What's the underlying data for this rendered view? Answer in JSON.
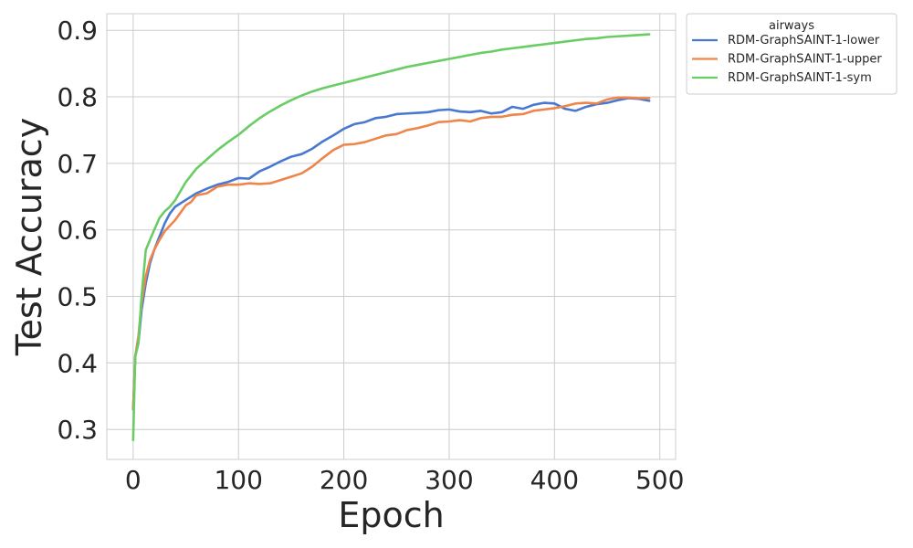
{
  "chart_data": {
    "type": "line",
    "title": "",
    "xlabel": "Epoch",
    "ylabel": "Test Accuracy",
    "xlim": [
      -25,
      515
    ],
    "ylim": [
      0.255,
      0.925
    ],
    "xticks": [
      0,
      100,
      200,
      300,
      400,
      500
    ],
    "xtick_labels": [
      "0",
      "100",
      "200",
      "300",
      "400",
      "500"
    ],
    "yticks": [
      0.3,
      0.4,
      0.5,
      0.6,
      0.7,
      0.8,
      0.9
    ],
    "ytick_labels": [
      "0.3",
      "0.4",
      "0.5",
      "0.6",
      "0.7",
      "0.8",
      "0.9"
    ],
    "grid": true,
    "legend": {
      "title": "airways",
      "placement": "outside-top-right"
    },
    "series": [
      {
        "name": "RDM-GraphSAINT-1-lower",
        "color": "#4878d0",
        "points": [
          [
            0,
            0.33
          ],
          [
            2,
            0.41
          ],
          [
            5,
            0.43
          ],
          [
            8,
            0.48
          ],
          [
            12,
            0.52
          ],
          [
            16,
            0.55
          ],
          [
            20,
            0.57
          ],
          [
            25,
            0.59
          ],
          [
            30,
            0.61
          ],
          [
            35,
            0.625
          ],
          [
            40,
            0.635
          ],
          [
            50,
            0.645
          ],
          [
            60,
            0.655
          ],
          [
            70,
            0.662
          ],
          [
            80,
            0.668
          ],
          [
            90,
            0.672
          ],
          [
            100,
            0.678
          ],
          [
            110,
            0.677
          ],
          [
            120,
            0.688
          ],
          [
            130,
            0.695
          ],
          [
            140,
            0.703
          ],
          [
            150,
            0.71
          ],
          [
            160,
            0.714
          ],
          [
            170,
            0.722
          ],
          [
            180,
            0.733
          ],
          [
            190,
            0.742
          ],
          [
            200,
            0.752
          ],
          [
            210,
            0.759
          ],
          [
            220,
            0.762
          ],
          [
            230,
            0.768
          ],
          [
            240,
            0.77
          ],
          [
            250,
            0.774
          ],
          [
            260,
            0.775
          ],
          [
            270,
            0.776
          ],
          [
            280,
            0.777
          ],
          [
            290,
            0.78
          ],
          [
            300,
            0.781
          ],
          [
            310,
            0.778
          ],
          [
            320,
            0.777
          ],
          [
            330,
            0.779
          ],
          [
            340,
            0.775
          ],
          [
            350,
            0.777
          ],
          [
            360,
            0.785
          ],
          [
            370,
            0.782
          ],
          [
            380,
            0.788
          ],
          [
            390,
            0.791
          ],
          [
            400,
            0.79
          ],
          [
            410,
            0.782
          ],
          [
            420,
            0.779
          ],
          [
            430,
            0.785
          ],
          [
            440,
            0.789
          ],
          [
            450,
            0.791
          ],
          [
            460,
            0.795
          ],
          [
            470,
            0.798
          ],
          [
            480,
            0.797
          ],
          [
            490,
            0.794
          ]
        ]
      },
      {
        "name": "RDM-GraphSAINT-1-upper",
        "color": "#ee854a",
        "points": [
          [
            0,
            0.33
          ],
          [
            2,
            0.41
          ],
          [
            5,
            0.44
          ],
          [
            8,
            0.49
          ],
          [
            12,
            0.53
          ],
          [
            16,
            0.555
          ],
          [
            20,
            0.57
          ],
          [
            25,
            0.585
          ],
          [
            30,
            0.598
          ],
          [
            40,
            0.615
          ],
          [
            50,
            0.637
          ],
          [
            55,
            0.642
          ],
          [
            60,
            0.652
          ],
          [
            70,
            0.655
          ],
          [
            80,
            0.665
          ],
          [
            90,
            0.668
          ],
          [
            100,
            0.668
          ],
          [
            110,
            0.67
          ],
          [
            120,
            0.669
          ],
          [
            130,
            0.67
          ],
          [
            140,
            0.675
          ],
          [
            150,
            0.68
          ],
          [
            160,
            0.685
          ],
          [
            170,
            0.695
          ],
          [
            180,
            0.708
          ],
          [
            190,
            0.72
          ],
          [
            200,
            0.728
          ],
          [
            210,
            0.729
          ],
          [
            220,
            0.732
          ],
          [
            230,
            0.737
          ],
          [
            240,
            0.742
          ],
          [
            250,
            0.744
          ],
          [
            260,
            0.75
          ],
          [
            270,
            0.753
          ],
          [
            280,
            0.757
          ],
          [
            290,
            0.762
          ],
          [
            300,
            0.763
          ],
          [
            310,
            0.765
          ],
          [
            320,
            0.763
          ],
          [
            330,
            0.768
          ],
          [
            340,
            0.77
          ],
          [
            350,
            0.77
          ],
          [
            360,
            0.773
          ],
          [
            370,
            0.774
          ],
          [
            380,
            0.779
          ],
          [
            390,
            0.781
          ],
          [
            400,
            0.783
          ],
          [
            410,
            0.786
          ],
          [
            420,
            0.79
          ],
          [
            430,
            0.791
          ],
          [
            440,
            0.79
          ],
          [
            450,
            0.796
          ],
          [
            460,
            0.799
          ],
          [
            470,
            0.799
          ],
          [
            480,
            0.798
          ],
          [
            490,
            0.798
          ]
        ]
      },
      {
        "name": "RDM-GraphSAINT-1-sym",
        "color": "#6acc64",
        "points": [
          [
            0,
            0.284
          ],
          [
            2,
            0.41
          ],
          [
            5,
            0.43
          ],
          [
            8,
            0.5
          ],
          [
            12,
            0.57
          ],
          [
            16,
            0.585
          ],
          [
            20,
            0.6
          ],
          [
            25,
            0.618
          ],
          [
            30,
            0.628
          ],
          [
            35,
            0.635
          ],
          [
            40,
            0.645
          ],
          [
            50,
            0.672
          ],
          [
            60,
            0.692
          ],
          [
            70,
            0.706
          ],
          [
            80,
            0.72
          ],
          [
            90,
            0.732
          ],
          [
            100,
            0.743
          ],
          [
            110,
            0.756
          ],
          [
            120,
            0.768
          ],
          [
            130,
            0.778
          ],
          [
            140,
            0.787
          ],
          [
            150,
            0.795
          ],
          [
            160,
            0.802
          ],
          [
            170,
            0.808
          ],
          [
            180,
            0.813
          ],
          [
            190,
            0.817
          ],
          [
            200,
            0.821
          ],
          [
            210,
            0.825
          ],
          [
            220,
            0.829
          ],
          [
            230,
            0.833
          ],
          [
            240,
            0.837
          ],
          [
            250,
            0.841
          ],
          [
            260,
            0.845
          ],
          [
            270,
            0.848
          ],
          [
            280,
            0.851
          ],
          [
            290,
            0.854
          ],
          [
            300,
            0.857
          ],
          [
            310,
            0.86
          ],
          [
            320,
            0.863
          ],
          [
            330,
            0.866
          ],
          [
            340,
            0.868
          ],
          [
            350,
            0.871
          ],
          [
            360,
            0.873
          ],
          [
            370,
            0.875
          ],
          [
            380,
            0.877
          ],
          [
            390,
            0.879
          ],
          [
            400,
            0.881
          ],
          [
            410,
            0.883
          ],
          [
            420,
            0.885
          ],
          [
            430,
            0.887
          ],
          [
            440,
            0.888
          ],
          [
            450,
            0.89
          ],
          [
            460,
            0.891
          ],
          [
            470,
            0.892
          ],
          [
            480,
            0.893
          ],
          [
            490,
            0.894
          ]
        ]
      }
    ]
  }
}
